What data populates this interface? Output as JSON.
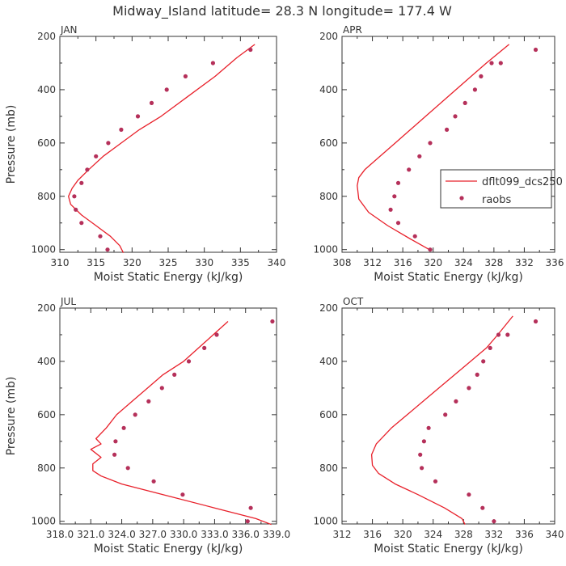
{
  "figure": {
    "title": "Midway_Island  latitude= 28.3 N longitude= 177.4 W",
    "line_color": "#e8202a",
    "point_color": "#b5305a"
  },
  "legend": {
    "model_label": "dflt099_dcs250",
    "obs_label": "raobs"
  },
  "chart_data": [
    {
      "type": "line",
      "panel": "JAN",
      "title": "JAN",
      "xlabel": "Moist Static Energy (kJ/kg)",
      "ylabel": "Pressure (mb)",
      "xlim": [
        310,
        340
      ],
      "ylim": [
        1010,
        200
      ],
      "xticks": [
        "310",
        "315",
        "320",
        "325",
        "330",
        "335",
        "340"
      ],
      "xtick_values": [
        310,
        315,
        320,
        325,
        330,
        335,
        340
      ],
      "yticks": [
        200,
        400,
        600,
        800,
        1000
      ],
      "series": [
        {
          "name": "dflt099_dcs250",
          "kind": "line",
          "x": [
            318.8,
            318.3,
            317.0,
            315.0,
            313.0,
            311.5,
            311.2,
            311.7,
            312.5,
            314.0,
            316.0,
            318.5,
            321.0,
            324.0,
            327.5,
            331.5,
            334.5,
            337.0
          ],
          "y": [
            1012,
            985,
            950,
            910,
            870,
            830,
            800,
            770,
            740,
            700,
            650,
            600,
            550,
            500,
            430,
            350,
            280,
            230
          ]
        },
        {
          "name": "raobs",
          "kind": "scatter",
          "x": [
            316.6,
            315.6,
            313.0,
            312.2,
            312.0,
            313.0,
            313.8,
            315.0,
            316.7,
            318.5,
            320.8,
            322.7,
            324.8,
            327.4,
            331.2,
            336.4
          ],
          "y": [
            1000,
            950,
            900,
            850,
            800,
            750,
            700,
            650,
            600,
            550,
            500,
            450,
            400,
            350,
            300,
            250
          ]
        }
      ]
    },
    {
      "type": "line",
      "panel": "APR",
      "title": "APR",
      "xlabel": "Moist Static Energy (kJ/kg)",
      "ylabel": "",
      "xlim": [
        308,
        336
      ],
      "ylim": [
        1010,
        200
      ],
      "xticks": [
        "308",
        "312",
        "316",
        "320",
        "324",
        "328",
        "332",
        "336"
      ],
      "xtick_values": [
        308,
        312,
        316,
        320,
        324,
        328,
        332,
        336
      ],
      "yticks": [
        200,
        400,
        600,
        800,
        1000
      ],
      "series": [
        {
          "name": "dflt099_dcs250",
          "kind": "line",
          "x": [
            319.5,
            317.0,
            314.0,
            311.5,
            310.2,
            310.0,
            310.2,
            311.0,
            313.0,
            315.0,
            317.0,
            319.0,
            321.0,
            323.0,
            325.0,
            327.0,
            330.0
          ],
          "y": [
            1000,
            960,
            910,
            860,
            810,
            760,
            730,
            700,
            650,
            600,
            550,
            500,
            450,
            400,
            350,
            300,
            230
          ]
        },
        {
          "name": "raobs",
          "kind": "scatter",
          "x": [
            319.6,
            317.6,
            315.4,
            314.4,
            314.9,
            315.4,
            316.8,
            318.2,
            319.6,
            321.8,
            322.9,
            324.2,
            325.5,
            326.3,
            327.7,
            328.9,
            333.5
          ],
          "y": [
            1000,
            950,
            900,
            850,
            800,
            750,
            700,
            650,
            600,
            550,
            500,
            450,
            400,
            350,
            300,
            300,
            250
          ]
        }
      ]
    },
    {
      "type": "line",
      "panel": "JUL",
      "title": "JUL",
      "xlabel": "Moist Static Energy (kJ/kg)",
      "ylabel": "Pressure (mb)",
      "xlim": [
        318.0,
        339.0
      ],
      "ylim": [
        1010,
        200
      ],
      "xticks": [
        "318.0",
        "321.0",
        "324.0",
        "327.0",
        "330.0",
        "333.0",
        "336.0",
        "339.0"
      ],
      "xtick_values": [
        318.0,
        321.0,
        324.0,
        327.0,
        330.0,
        333.0,
        336.0,
        339.0
      ],
      "yticks": [
        200,
        400,
        600,
        800,
        1000
      ],
      "series": [
        {
          "name": "dflt099_dcs250",
          "kind": "line",
          "x": [
            338.5,
            337.0,
            333.0,
            328.0,
            324.0,
            322.0,
            321.2,
            321.2,
            322.0,
            321.0,
            322.0,
            321.5,
            322.5,
            323.5,
            325.0,
            326.5,
            328.0,
            330.0,
            332.0,
            334.3
          ],
          "y": [
            1012,
            990,
            950,
            900,
            860,
            830,
            810,
            785,
            760,
            730,
            710,
            690,
            650,
            600,
            550,
            500,
            450,
            400,
            330,
            250
          ]
        },
        {
          "name": "raobs",
          "kind": "scatter",
          "x": [
            336.2,
            336.5,
            329.9,
            327.1,
            324.6,
            323.3,
            323.4,
            324.2,
            325.3,
            326.6,
            327.9,
            329.1,
            330.5,
            332.0,
            333.2,
            338.6
          ],
          "y": [
            1000,
            950,
            900,
            850,
            800,
            750,
            700,
            650,
            600,
            550,
            500,
            450,
            400,
            350,
            300,
            250
          ]
        }
      ]
    },
    {
      "type": "line",
      "panel": "OCT",
      "title": "OCT",
      "xlabel": "Moist Static Energy (kJ/kg)",
      "ylabel": "",
      "xlim": [
        312,
        340
      ],
      "ylim": [
        1010,
        200
      ],
      "xticks": [
        "312",
        "316",
        "320",
        "324",
        "328",
        "332",
        "336",
        "340"
      ],
      "xtick_values": [
        312,
        316,
        320,
        324,
        328,
        332,
        336,
        340
      ],
      "yticks": [
        200,
        400,
        600,
        800,
        1000
      ],
      "series": [
        {
          "name": "dflt099_dcs250",
          "kind": "line",
          "x": [
            328.2,
            327.8,
            325.5,
            322.0,
            319.0,
            316.8,
            316.0,
            315.9,
            316.5,
            318.5,
            321.0,
            323.5,
            326.0,
            328.5,
            331.0,
            332.5,
            334.5
          ],
          "y": [
            1012,
            990,
            950,
            900,
            860,
            820,
            790,
            750,
            710,
            650,
            590,
            530,
            470,
            410,
            350,
            300,
            230
          ]
        },
        {
          "name": "raobs",
          "kind": "scatter",
          "x": [
            332.0,
            330.5,
            328.7,
            324.3,
            322.5,
            322.3,
            322.8,
            323.4,
            325.6,
            327.0,
            328.7,
            329.8,
            330.6,
            331.5,
            332.6,
            333.8,
            337.5
          ],
          "y": [
            1000,
            950,
            900,
            850,
            800,
            750,
            700,
            650,
            600,
            550,
            500,
            450,
            400,
            350,
            300,
            300,
            250
          ]
        }
      ]
    }
  ]
}
